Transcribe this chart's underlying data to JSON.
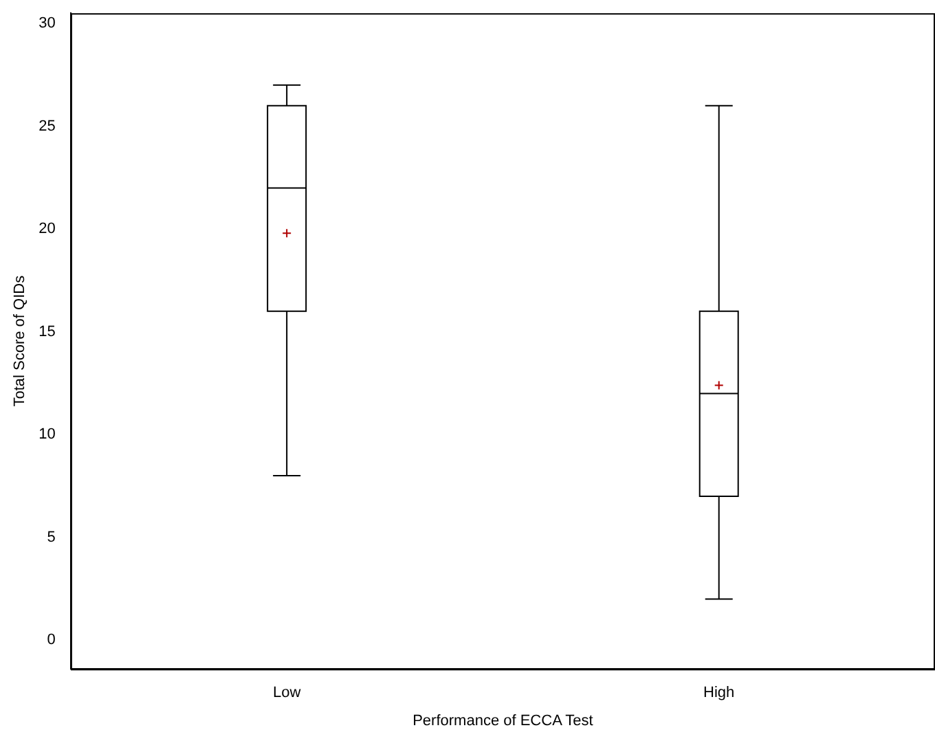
{
  "chart_data": {
    "type": "box",
    "xlabel": "Performance of ECCA Test",
    "ylabel": "Total Score of QIDs",
    "categories": [
      "Low",
      "High"
    ],
    "series": [
      {
        "color": "#000000",
        "boxes": [
          {
            "low": 8,
            "q1": 16,
            "median": 22,
            "q3": 26,
            "high": 27,
            "mean": 19.8
          },
          {
            "low": 2,
            "q1": 7,
            "median": 12,
            "q3": 16,
            "high": 26,
            "mean": 12.4
          }
        ]
      }
    ],
    "ylim": [
      -1.4,
      30.5
    ],
    "yticks": [
      0,
      5,
      10,
      15,
      20,
      25,
      30
    ],
    "grid": false,
    "legend": false
  }
}
